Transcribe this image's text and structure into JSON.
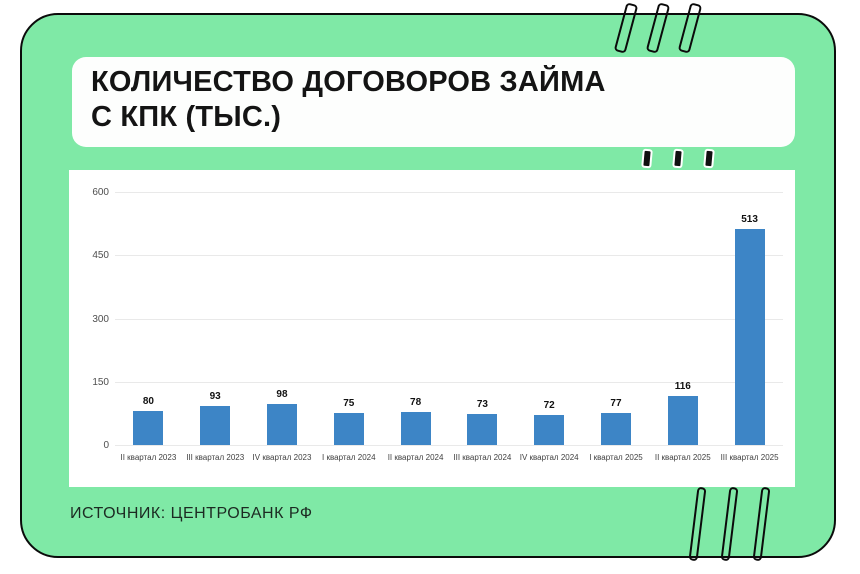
{
  "header": {
    "title_lines": [
      "КОЛИЧЕСТВО ДОГОВОРОВ ЗАЙМА",
      "С КПК (ТЫС.)"
    ]
  },
  "footer": {
    "source": "ИСТОЧНИК: ЦЕНТРОБАНК РФ"
  },
  "colors": {
    "sticker_green": "#7fe9a6",
    "outline_black": "#0b0b0b",
    "bar_blue": "#3d85c6",
    "gridline_gray": "#e9e9e9"
  },
  "chart_data": {
    "type": "bar",
    "title": "КОЛИЧЕСТВО ДОГОВОРОВ ЗАЙМА С КПК (ТЫС.)",
    "categories": [
      "II квартал 2023",
      "III квартал 2023",
      "IV квартал 2023",
      "I квартал 2024",
      "II квартал 2024",
      "III квартал 2024",
      "IV квартал 2024",
      "I квартал 2025",
      "II квартал 2025",
      "III квартал 2025"
    ],
    "values": [
      80,
      93,
      98,
      75,
      78,
      73,
      72,
      77,
      116,
      513
    ],
    "bar_color": "#3d85c6",
    "xlabel": "",
    "ylabel": "",
    "ylim": [
      0,
      600
    ],
    "yticks": [
      0,
      150,
      300,
      450,
      600
    ],
    "grid": true,
    "legend": false,
    "data_labels": true,
    "source": "ИСТОЧНИК: ЦЕНТРОБАНК РФ"
  }
}
